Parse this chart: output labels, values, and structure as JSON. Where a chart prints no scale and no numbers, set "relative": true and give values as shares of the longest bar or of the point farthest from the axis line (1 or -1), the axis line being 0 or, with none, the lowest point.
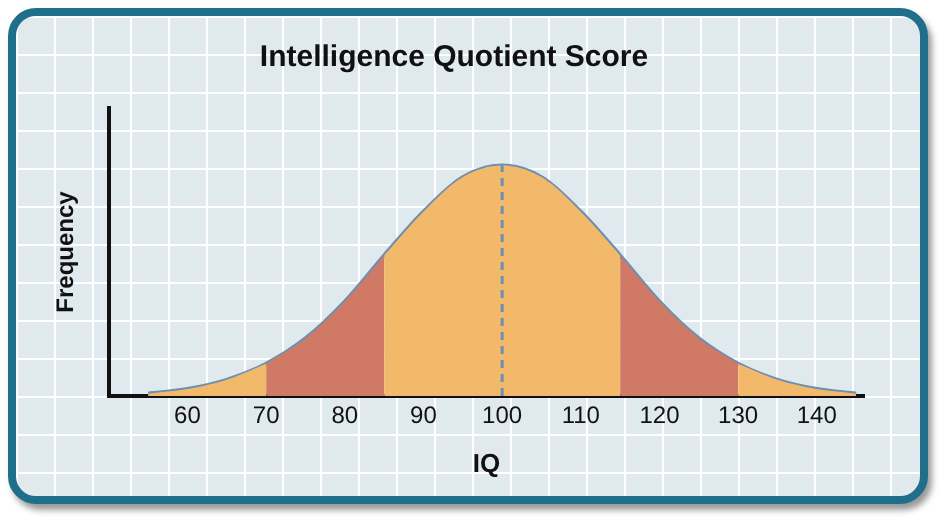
{
  "chart_data": {
    "type": "area",
    "title": "Intelligence Quotient Score",
    "xlabel": "IQ",
    "ylabel": "Frequency",
    "relative": true,
    "xlim": [
      50,
      146
    ],
    "xticks": [
      60,
      70,
      80,
      90,
      100,
      110,
      120,
      130,
      140
    ],
    "grid": false,
    "legend": false,
    "series": [
      {
        "color": "#f2b96b",
        "x": [
          55,
          60,
          65,
          70
        ],
        "values": [
          0.01,
          0.03,
          0.07,
          0.14
        ]
      },
      {
        "color": "#d07a66",
        "x": [
          70,
          75,
          80,
          85
        ],
        "values": [
          0.14,
          0.25,
          0.41,
          0.61
        ]
      },
      {
        "color": "#f2b96b",
        "x": [
          85,
          90,
          95,
          100,
          105,
          110,
          115
        ],
        "values": [
          0.61,
          0.8,
          0.95,
          1,
          0.95,
          0.8,
          0.61
        ]
      },
      {
        "color": "#d07a66",
        "x": [
          115,
          120,
          125,
          130
        ],
        "values": [
          0.61,
          0.41,
          0.25,
          0.14
        ]
      },
      {
        "color": "#f2b96b",
        "x": [
          130,
          135,
          140,
          145
        ],
        "values": [
          0.14,
          0.07,
          0.03,
          0.01
        ]
      },
      {
        "type": "line",
        "color": "#6f8fb0",
        "x": [
          55,
          60,
          65,
          70,
          75,
          80,
          85,
          90,
          95,
          100,
          105,
          110,
          115,
          120,
          125,
          130,
          135,
          140,
          145
        ],
        "values": [
          0.01,
          0.03,
          0.07,
          0.14,
          0.25,
          0.41,
          0.61,
          0.8,
          0.95,
          1,
          0.95,
          0.8,
          0.61,
          0.41,
          0.25,
          0.14,
          0.07,
          0.03,
          0.01
        ]
      }
    ],
    "ref_lines": [
      {
        "axis": "x",
        "value": 100,
        "color": "#6f8fb0",
        "line_style": "dashed"
      }
    ]
  }
}
